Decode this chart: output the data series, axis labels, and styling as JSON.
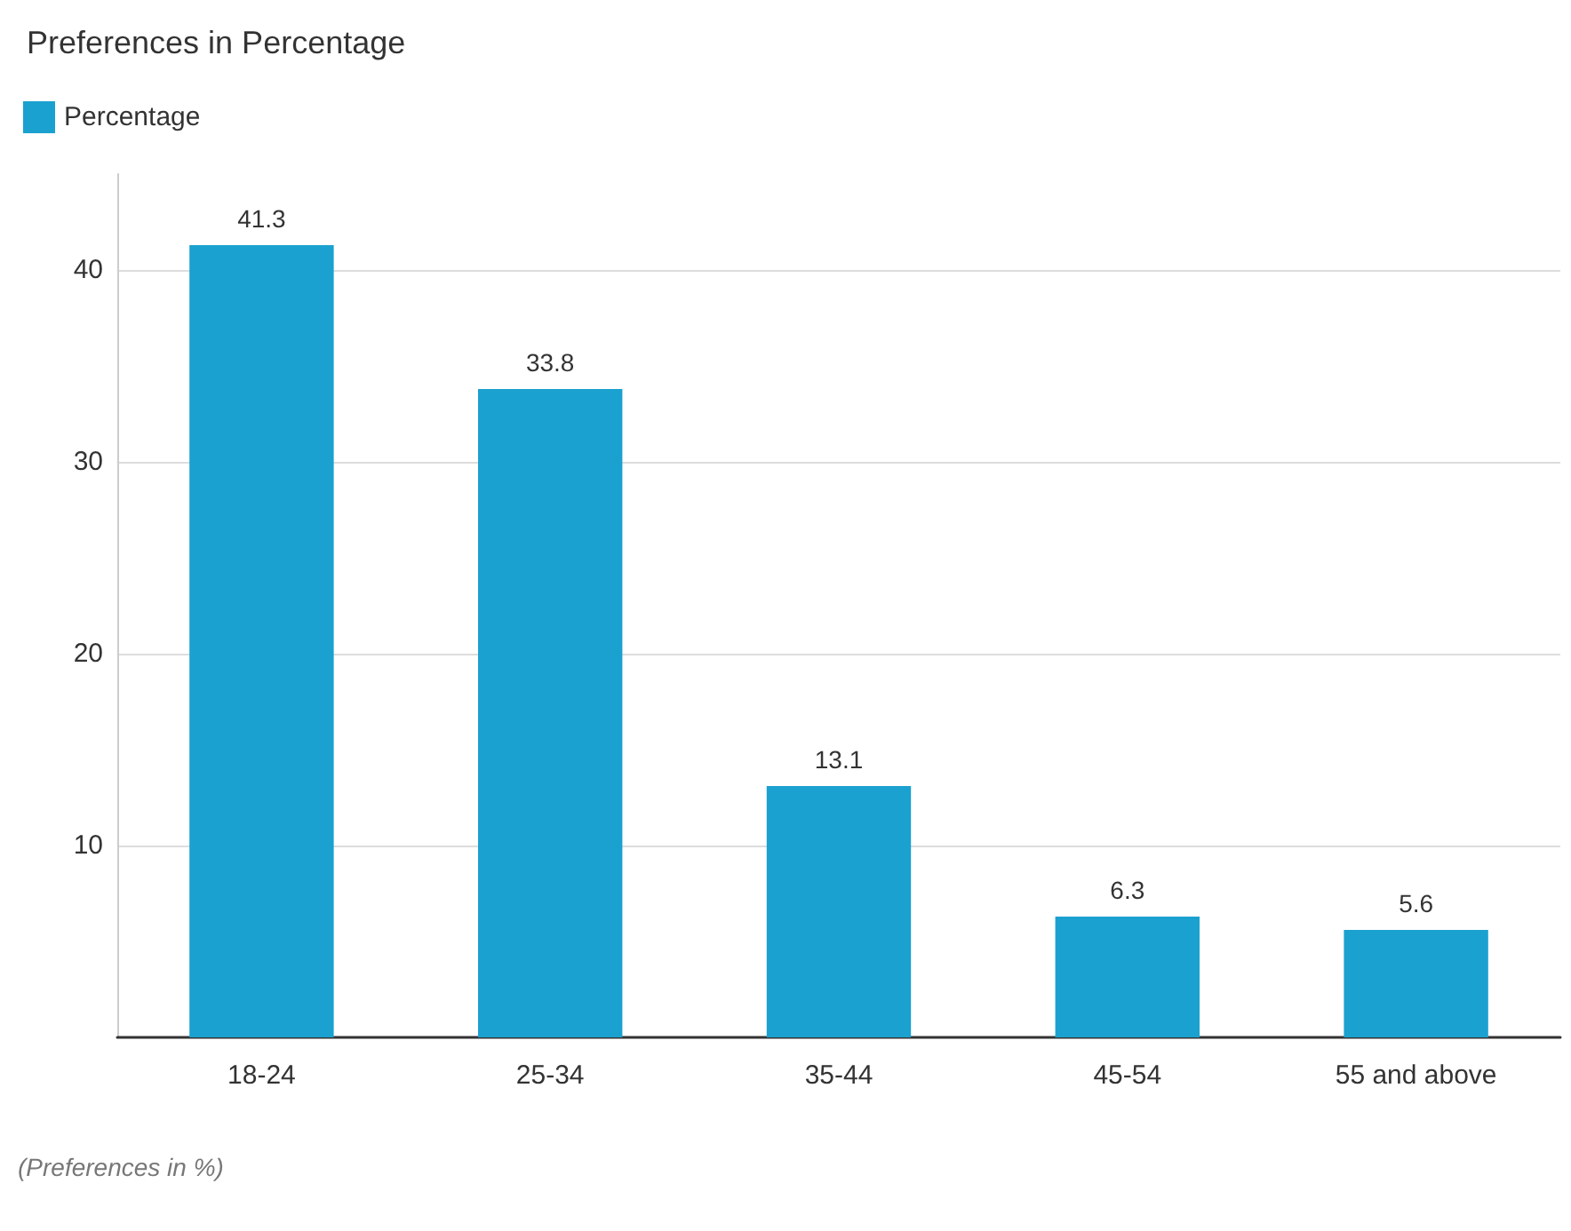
{
  "chart_data": {
    "type": "bar",
    "title": "Preferences in Percentage",
    "categories": [
      "18-24",
      "25-34",
      "35-44",
      "45-54",
      "55 and above"
    ],
    "series": [
      {
        "name": "Percentage",
        "color": "#1ba1cf",
        "values": [
          41.3,
          33.8,
          13.1,
          6.3,
          5.6
        ]
      }
    ],
    "ylim": [
      0,
      45
    ],
    "yticks": [
      10,
      20,
      30,
      40
    ],
    "grid": "y",
    "legend": "top left",
    "data_labels": true,
    "annotations": [
      "(Preferences in %)"
    ]
  }
}
